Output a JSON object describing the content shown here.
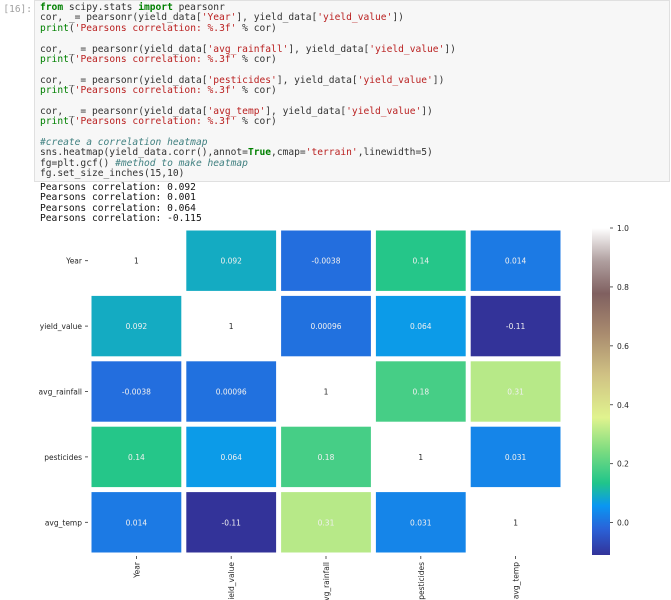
{
  "cell": {
    "prompt": "[16]:",
    "code_lines": [
      [
        {
          "t": "from",
          "c": "kw"
        },
        {
          "t": " scipy.stats ",
          "c": ""
        },
        {
          "t": "import",
          "c": "kw"
        },
        {
          "t": " pearsonr",
          "c": ""
        }
      ],
      [
        {
          "t": "cor, _= pearsonr(yield_data[",
          "c": ""
        },
        {
          "t": "'Year'",
          "c": "str"
        },
        {
          "t": "], yield_data[",
          "c": ""
        },
        {
          "t": "'yield_value'",
          "c": "str"
        },
        {
          "t": "])",
          "c": ""
        }
      ],
      [
        {
          "t": "print",
          "c": "fn"
        },
        {
          "t": "(",
          "c": ""
        },
        {
          "t": "'Pearsons correlation: %.3f'",
          "c": "str"
        },
        {
          "t": " % cor)",
          "c": ""
        }
      ],
      [],
      [
        {
          "t": "cor, _ = pearsonr(yield_data[",
          "c": ""
        },
        {
          "t": "'avg_rainfall'",
          "c": "str"
        },
        {
          "t": "], yield_data[",
          "c": ""
        },
        {
          "t": "'yield_value'",
          "c": "str"
        },
        {
          "t": "])",
          "c": ""
        }
      ],
      [
        {
          "t": "print",
          "c": "fn"
        },
        {
          "t": "(",
          "c": ""
        },
        {
          "t": "'Pearsons correlation: %.3f'",
          "c": "str"
        },
        {
          "t": " % cor)",
          "c": ""
        }
      ],
      [],
      [
        {
          "t": "cor, _ = pearsonr(yield_data[",
          "c": ""
        },
        {
          "t": "'pesticides'",
          "c": "str"
        },
        {
          "t": "], yield_data[",
          "c": ""
        },
        {
          "t": "'yield_value'",
          "c": "str"
        },
        {
          "t": "])",
          "c": ""
        }
      ],
      [
        {
          "t": "print",
          "c": "fn"
        },
        {
          "t": "(",
          "c": ""
        },
        {
          "t": "'Pearsons correlation: %.3f'",
          "c": "str"
        },
        {
          "t": " % cor)",
          "c": ""
        }
      ],
      [],
      [
        {
          "t": "cor, _ = pearsonr(yield_data[",
          "c": ""
        },
        {
          "t": "'avg_temp'",
          "c": "str"
        },
        {
          "t": "], yield_data[",
          "c": ""
        },
        {
          "t": "'yield_value'",
          "c": "str"
        },
        {
          "t": "])",
          "c": ""
        }
      ],
      [
        {
          "t": "print",
          "c": "fn"
        },
        {
          "t": "(",
          "c": ""
        },
        {
          "t": "'Pearsons correlation: %.3f'",
          "c": "str"
        },
        {
          "t": " % cor)",
          "c": ""
        }
      ],
      [],
      [
        {
          "t": "#create a correlation heatmap",
          "c": "cm"
        }
      ],
      [
        {
          "t": "sns.heatmap(yield_data.corr(),annot=",
          "c": ""
        },
        {
          "t": "True",
          "c": "bool"
        },
        {
          "t": ",cmap=",
          "c": ""
        },
        {
          "t": "'terrain'",
          "c": "str"
        },
        {
          "t": ",linewidth=5)",
          "c": ""
        }
      ],
      [
        {
          "t": "fg=plt.gcf() ",
          "c": ""
        },
        {
          "t": "#method to make heatmap",
          "c": "cm"
        }
      ],
      [
        {
          "t": "fg.set_size_inches(15,10)",
          "c": ""
        }
      ]
    ]
  },
  "output_lines": [
    "Pearsons correlation: 0.092",
    "Pearsons correlation: 0.001",
    "Pearsons correlation: 0.064",
    "Pearsons correlation: -0.115"
  ],
  "chart_data": {
    "type": "heatmap",
    "title": "",
    "rows": [
      "Year",
      "yield_value",
      "avg_rainfall",
      "pesticides",
      "avg_temp"
    ],
    "cols": [
      "Year",
      "yield_value",
      "avg_rainfall",
      "pesticides",
      "avg_temp"
    ],
    "values": [
      [
        1,
        0.092,
        -0.0038,
        0.14,
        0.014
      ],
      [
        0.092,
        1,
        0.00096,
        0.064,
        -0.11
      ],
      [
        -0.0038,
        0.00096,
        1,
        0.18,
        0.31
      ],
      [
        0.14,
        0.064,
        0.18,
        1,
        0.031
      ],
      [
        0.014,
        -0.11,
        0.31,
        0.031,
        1
      ]
    ],
    "annotations": [
      [
        "1",
        "0.092",
        "-0.0038",
        "0.14",
        "0.014"
      ],
      [
        "0.092",
        "1",
        "0.00096",
        "0.064",
        "-0.11"
      ],
      [
        "-0.0038",
        "0.00096",
        "1",
        "0.18",
        "0.31"
      ],
      [
        "0.14",
        "0.064",
        "0.18",
        "1",
        "0.031"
      ],
      [
        "0.014",
        "-0.11",
        "0.31",
        "0.031",
        "1"
      ]
    ],
    "cmap": "terrain",
    "vmin": -0.11,
    "vmax": 1.0,
    "colorbar_ticks": [
      0.0,
      0.2,
      0.4,
      0.6,
      0.8,
      1.0
    ],
    "colorbar_tick_labels": [
      "0.0",
      "0.2",
      "0.4",
      "0.6",
      "0.8",
      "1.0"
    ]
  }
}
